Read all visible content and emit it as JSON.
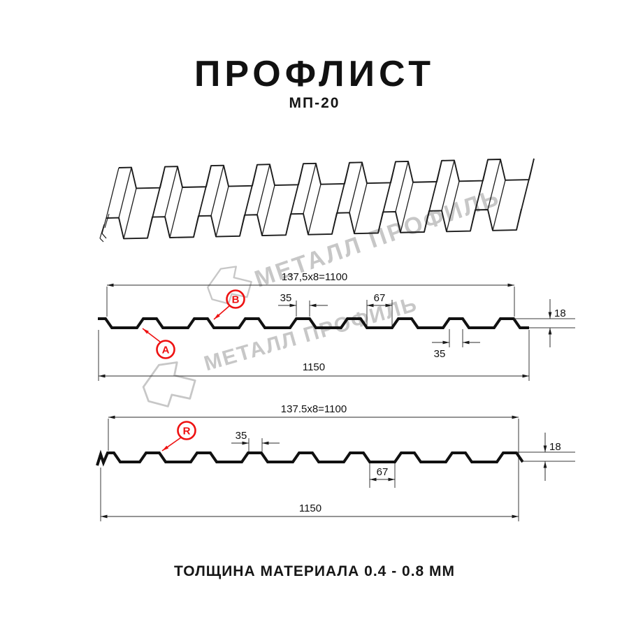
{
  "title": "ПРОФЛИСТ",
  "subtitle": "МП-20",
  "footer": "ТОЛЩИНА МАТЕРИАЛА 0.4 - 0.8 ММ",
  "watermark": {
    "text": "МЕТАЛЛ ПРОФИЛЬ"
  },
  "colors": {
    "ink": "#1a1a1a",
    "accent_red": "#ee1111",
    "watermark_gray": "#c7c7c7"
  },
  "sections": {
    "front": {
      "dim_formula": "137,5x8=1100",
      "dim_crest": "35",
      "dim_valley": "67",
      "dim_height": "18",
      "dim_crest_bottom": "35",
      "dim_overall": "1150",
      "label_a": "A",
      "label_b": "B"
    },
    "reverse": {
      "dim_formula": "137.5x8=1100",
      "dim_crest": "35",
      "dim_valley": "67",
      "dim_height": "18",
      "dim_overall": "1150",
      "label_r": "R"
    }
  }
}
